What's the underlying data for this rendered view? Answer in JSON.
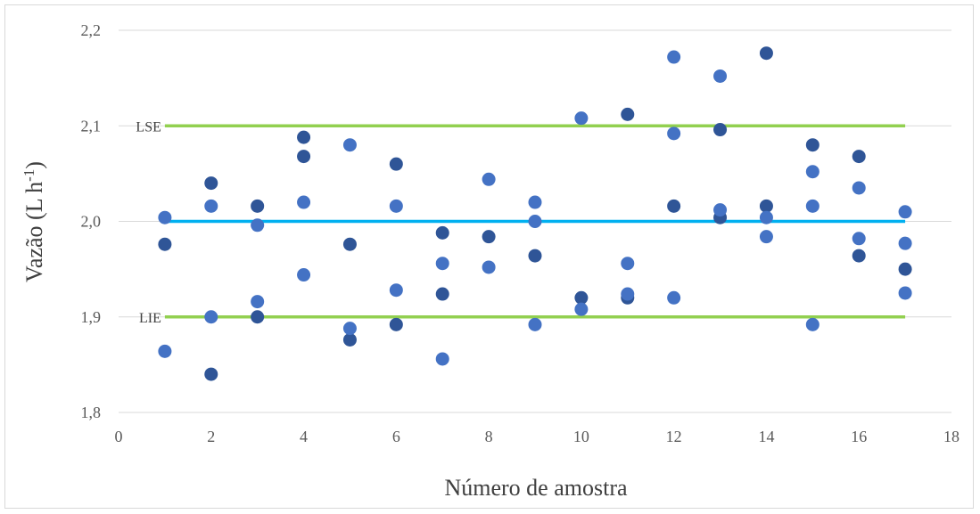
{
  "chart_data": {
    "type": "scatter",
    "xlabel": "Número de amostra",
    "ylabel_main": "Vazão (L h",
    "ylabel_sup": "-1",
    "ylabel_close": ")",
    "xlim": [
      0,
      18
    ],
    "ylim": [
      1.8,
      2.2
    ],
    "x_ticks": [
      0,
      2,
      4,
      6,
      8,
      10,
      12,
      14,
      16,
      18
    ],
    "x_tick_labels": [
      "0",
      "2",
      "4",
      "6",
      "8",
      "10",
      "12",
      "14",
      "16",
      "18"
    ],
    "y_ticks": [
      1.8,
      1.9,
      2.0,
      2.1,
      2.2
    ],
    "y_tick_labels": [
      "1,8",
      "1,9",
      "2,0",
      "2,1",
      "2,2"
    ],
    "grid": "horizontal",
    "reference_lines": [
      {
        "label": "LSE",
        "y": 2.1,
        "x_start": 1,
        "x_end": 17,
        "color": "#92d050"
      },
      {
        "label": "",
        "y": 2.0,
        "x_start": 1,
        "x_end": 17,
        "color": "#00b0f0"
      },
      {
        "label": "LIE",
        "y": 1.9,
        "x_start": 1,
        "x_end": 17,
        "color": "#92d050"
      }
    ],
    "series": [
      {
        "color": "#2f5597",
        "points": [
          [
            1,
            1.976
          ],
          [
            2,
            2.04
          ],
          [
            2,
            1.84
          ],
          [
            3,
            2.016
          ],
          [
            3,
            1.9
          ],
          [
            4,
            2.088
          ],
          [
            4,
            2.068
          ],
          [
            5,
            1.976
          ],
          [
            5,
            1.876
          ],
          [
            6,
            2.06
          ],
          [
            6,
            1.892
          ],
          [
            7,
            1.988
          ],
          [
            7,
            1.924
          ],
          [
            8,
            1.984
          ],
          [
            9,
            1.964
          ],
          [
            10,
            1.92
          ],
          [
            11,
            2.112
          ],
          [
            11,
            1.92
          ],
          [
            12,
            2.016
          ],
          [
            13,
            2.096
          ],
          [
            13,
            2.004
          ],
          [
            14,
            2.176
          ],
          [
            14,
            2.016
          ],
          [
            15,
            2.08
          ],
          [
            16,
            2.068
          ],
          [
            16,
            1.964
          ],
          [
            17,
            1.95
          ]
        ]
      },
      {
        "color": "#4472c4",
        "points": [
          [
            1,
            2.004
          ],
          [
            1,
            1.864
          ],
          [
            2,
            2.016
          ],
          [
            2,
            1.9
          ],
          [
            3,
            1.996
          ],
          [
            3,
            1.916
          ],
          [
            4,
            2.02
          ],
          [
            4,
            1.944
          ],
          [
            5,
            2.08
          ],
          [
            5,
            1.888
          ],
          [
            6,
            2.016
          ],
          [
            6,
            1.928
          ],
          [
            7,
            1.956
          ],
          [
            7,
            1.856
          ],
          [
            8,
            2.044
          ],
          [
            8,
            1.952
          ],
          [
            9,
            2.02
          ],
          [
            9,
            2.0
          ],
          [
            9,
            1.892
          ],
          [
            10,
            2.108
          ],
          [
            10,
            1.908
          ],
          [
            11,
            1.956
          ],
          [
            11,
            1.924
          ],
          [
            12,
            2.172
          ],
          [
            12,
            2.092
          ],
          [
            12,
            1.92
          ],
          [
            13,
            2.152
          ],
          [
            13,
            2.012
          ],
          [
            14,
            2.004
          ],
          [
            14,
            1.984
          ],
          [
            15,
            2.052
          ],
          [
            15,
            2.016
          ],
          [
            15,
            1.892
          ],
          [
            16,
            2.035
          ],
          [
            16,
            1.982
          ],
          [
            17,
            2.01
          ],
          [
            17,
            1.977
          ],
          [
            17,
            1.925
          ]
        ]
      }
    ]
  }
}
